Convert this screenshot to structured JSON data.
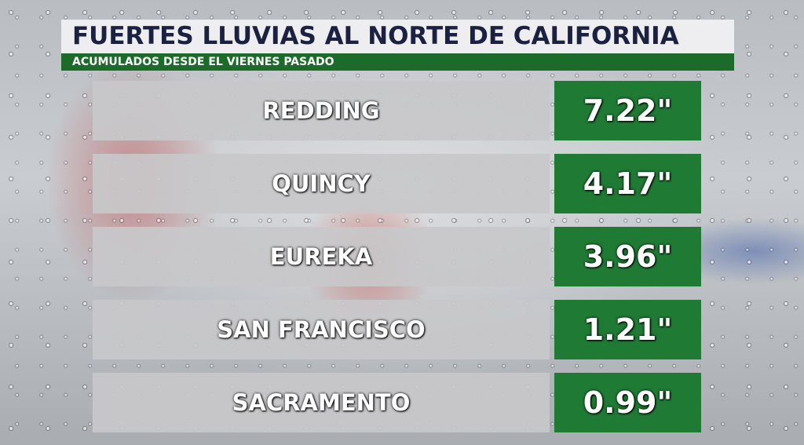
{
  "header": {
    "title": "FUERTES LLUVIAS AL NORTE DE CALIFORNIA",
    "subtitle": "ACUMULADOS DESDE EL VIERNES PASADO"
  },
  "table": {
    "rows": [
      {
        "city": "REDDING",
        "value": "7.22\""
      },
      {
        "city": "QUINCY",
        "value": "4.17\""
      },
      {
        "city": "EUREKA",
        "value": "3.96\""
      },
      {
        "city": "SAN FRANCISCO",
        "value": "1.21\""
      },
      {
        "city": "SACRAMENTO",
        "value": "0.99\""
      }
    ]
  }
}
